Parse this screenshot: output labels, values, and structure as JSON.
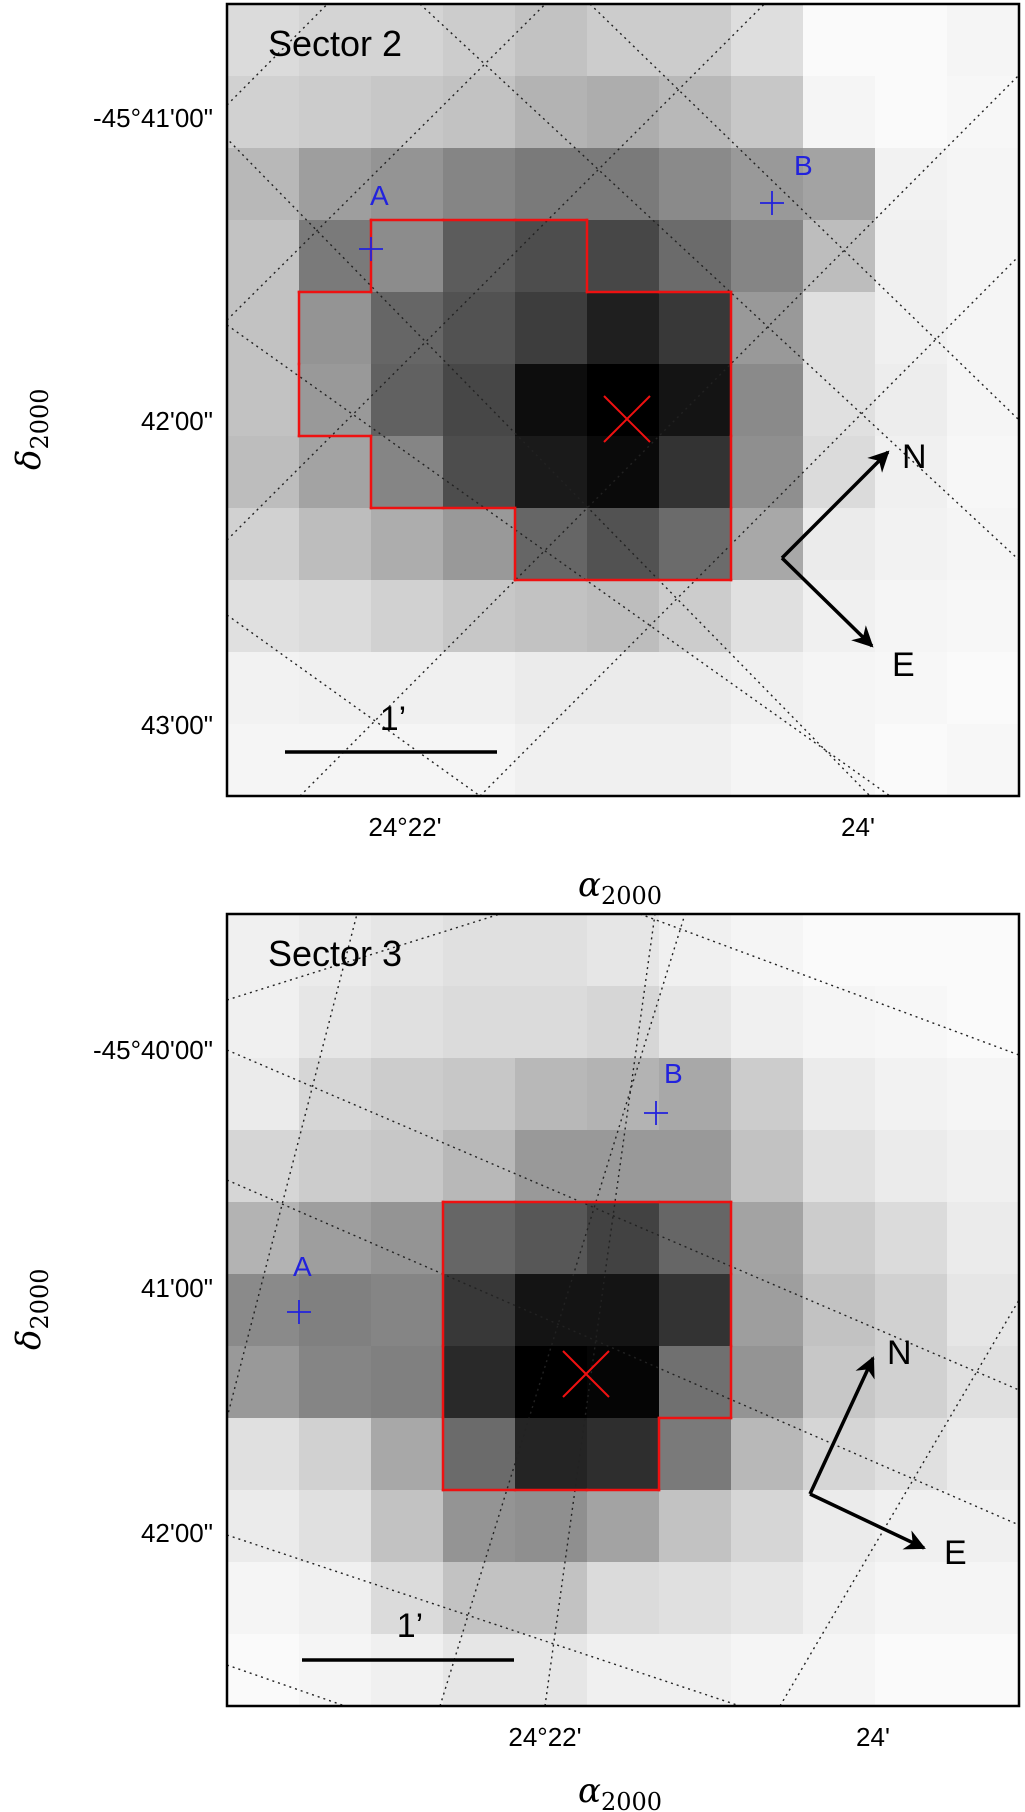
{
  "chart_data": [
    {
      "type": "heatmap",
      "title": "Sector 2",
      "xlabel": "α",
      "xlabel_sub": "2000",
      "ylabel": "δ",
      "ylabel_sub": "2000",
      "xticks": [
        "24°22'",
        "24'"
      ],
      "yticks": [
        "-45°41'00\"",
        "42'00\"",
        "43'00\""
      ],
      "grid": true,
      "pixels": [
        [
          14,
          17,
          17,
          20,
          24,
          20,
          20,
          13,
          2,
          2,
          4
        ],
        [
          18,
          20,
          22,
          24,
          30,
          32,
          28,
          22,
          4,
          2,
          3
        ],
        [
          28,
          38,
          42,
          48,
          52,
          52,
          46,
          40,
          36,
          5,
          4
        ],
        [
          24,
          52,
          45,
          64,
          70,
          72,
          58,
          48,
          26,
          6,
          4
        ],
        [
          24,
          42,
          60,
          68,
          76,
          88,
          78,
          40,
          12,
          6,
          4
        ],
        [
          24,
          40,
          62,
          72,
          95,
          100,
          92,
          46,
          12,
          7,
          4
        ],
        [
          26,
          36,
          48,
          70,
          90,
          96,
          80,
          44,
          14,
          6,
          3
        ],
        [
          18,
          26,
          32,
          40,
          60,
          68,
          58,
          34,
          8,
          5,
          4
        ],
        [
          12,
          14,
          18,
          22,
          24,
          26,
          20,
          12,
          6,
          4,
          3
        ],
        [
          5,
          6,
          6,
          6,
          8,
          8,
          8,
          6,
          4,
          3,
          2
        ],
        [
          4,
          4,
          4,
          4,
          6,
          6,
          6,
          4,
          4,
          2,
          3
        ]
      ],
      "aperture": [
        [
          3,
          2
        ],
        [
          3,
          3
        ],
        [
          3,
          4
        ],
        [
          4,
          1
        ],
        [
          4,
          2
        ],
        [
          4,
          3
        ],
        [
          4,
          4
        ],
        [
          4,
          5
        ],
        [
          4,
          6
        ],
        [
          5,
          1
        ],
        [
          5,
          2
        ],
        [
          5,
          3
        ],
        [
          5,
          4
        ],
        [
          5,
          5
        ],
        [
          5,
          6
        ],
        [
          6,
          2
        ],
        [
          6,
          3
        ],
        [
          6,
          4
        ],
        [
          6,
          5
        ],
        [
          6,
          6
        ],
        [
          7,
          4
        ],
        [
          7,
          5
        ],
        [
          7,
          6
        ]
      ],
      "sources": [
        {
          "label": "A",
          "color": "#2222dd"
        },
        {
          "label": "B",
          "color": "#2222dd"
        }
      ],
      "target_color": "#ee1111",
      "aperture_color": "#ee1111",
      "compass": {
        "north": "N",
        "east": "E"
      },
      "scalebar_label": "1’"
    },
    {
      "type": "heatmap",
      "title": "Sector 3",
      "xlabel": "α",
      "xlabel_sub": "2000",
      "ylabel": "δ",
      "ylabel_sub": "2000",
      "xticks": [
        "24°22'",
        "24'"
      ],
      "yticks": [
        "-45°40'00\"",
        "41'00\"",
        "42'00\""
      ],
      "grid": true,
      "pixels": [
        [
          6,
          8,
          10,
          12,
          12,
          10,
          6,
          4,
          2,
          2,
          2
        ],
        [
          6,
          10,
          12,
          14,
          14,
          16,
          10,
          6,
          4,
          3,
          2
        ],
        [
          8,
          16,
          20,
          22,
          28,
          30,
          34,
          20,
          8,
          5,
          4
        ],
        [
          16,
          20,
          22,
          28,
          40,
          40,
          40,
          24,
          12,
          8,
          6
        ],
        [
          30,
          38,
          42,
          60,
          66,
          74,
          60,
          36,
          20,
          14,
          8
        ],
        [
          46,
          50,
          48,
          78,
          92,
          92,
          80,
          38,
          24,
          18,
          10
        ],
        [
          40,
          48,
          50,
          84,
          100,
          98,
          56,
          42,
          22,
          18,
          12
        ],
        [
          12,
          18,
          34,
          58,
          86,
          82,
          52,
          28,
          16,
          12,
          8
        ],
        [
          8,
          12,
          24,
          42,
          44,
          36,
          24,
          16,
          8,
          6,
          6
        ],
        [
          4,
          6,
          14,
          24,
          24,
          14,
          12,
          10,
          6,
          4,
          4
        ],
        [
          2,
          4,
          6,
          10,
          10,
          6,
          6,
          4,
          4,
          2,
          2
        ]
      ],
      "aperture": [
        [
          4,
          3
        ],
        [
          4,
          4
        ],
        [
          4,
          5
        ],
        [
          4,
          6
        ],
        [
          5,
          3
        ],
        [
          5,
          4
        ],
        [
          5,
          5
        ],
        [
          5,
          6
        ],
        [
          6,
          3
        ],
        [
          6,
          4
        ],
        [
          6,
          5
        ],
        [
          6,
          6
        ],
        [
          7,
          3
        ],
        [
          7,
          4
        ],
        [
          7,
          5
        ]
      ],
      "sources": [
        {
          "label": "A",
          "color": "#2222dd"
        },
        {
          "label": "B",
          "color": "#2222dd"
        }
      ],
      "target_color": "#ee1111",
      "aperture_color": "#ee1111",
      "compass": {
        "north": "N",
        "east": "E"
      },
      "scalebar_label": "1’"
    }
  ]
}
